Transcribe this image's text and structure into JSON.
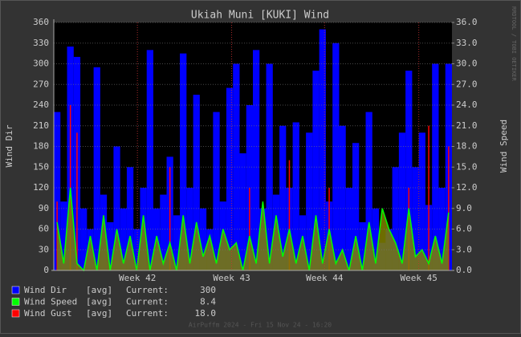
{
  "chart_data": {
    "type": "rrd",
    "title": "Ukiah Muni [KUKI] Wind",
    "y_label": "Wind Dir",
    "y2_label": "Wind Speed",
    "side_note": "RRDTOOL / TOBI OETIKER",
    "footer": "AirPuffm 2024 - Fri 15 Nov 24 - 16:20",
    "legend_stat": "[avg]",
    "current_label": "Current:",
    "x": [
      0,
      0.5,
      1,
      1.5,
      2,
      2.5,
      3,
      3.5,
      4,
      4.5,
      5,
      5.5,
      6,
      6.5,
      7,
      7.5,
      8,
      8.5,
      9,
      9.5,
      10,
      10.5,
      11,
      11.5,
      12,
      12.5,
      13,
      13.5,
      14,
      14.5,
      15,
      15.5,
      16,
      16.5,
      17,
      17.5,
      18,
      18.5,
      19,
      19.5,
      20,
      20.5,
      21,
      21.5,
      22,
      22.5,
      23,
      23.5,
      24,
      24.5,
      25,
      25.5,
      26,
      26.5,
      27,
      27.5,
      28,
      28.5,
      29,
      29.5
    ],
    "xlim": [
      0,
      30
    ],
    "xticks": [
      {
        "value": 6.3,
        "label": "Week 42"
      },
      {
        "value": 13.4,
        "label": "Week 43"
      },
      {
        "value": 20.4,
        "label": "Week 44"
      },
      {
        "value": 27.5,
        "label": "Week 45"
      }
    ],
    "ylim": [
      0,
      360
    ],
    "yticks": [
      0,
      30,
      60,
      90,
      120,
      150,
      180,
      210,
      240,
      270,
      300,
      330,
      360
    ],
    "y2lim": [
      0,
      36
    ],
    "y2ticks": [
      {
        "value": 0,
        "label": "0.0"
      },
      {
        "value": 3,
        "label": "3.0"
      },
      {
        "value": 6,
        "label": "6.0"
      },
      {
        "value": 9,
        "label": "9.0"
      },
      {
        "value": 12,
        "label": "12.0"
      },
      {
        "value": 15,
        "label": "15.0"
      },
      {
        "value": 18,
        "label": "18.0"
      },
      {
        "value": 21,
        "label": "21.0"
      },
      {
        "value": 24,
        "label": "24.0"
      },
      {
        "value": 27,
        "label": "27.0"
      },
      {
        "value": 30,
        "label": "30.0"
      },
      {
        "value": 33,
        "label": "33.0"
      },
      {
        "value": 36,
        "label": "36.0"
      }
    ],
    "grid": true,
    "series": [
      {
        "name": "Wind Dir",
        "color": "#0000ff",
        "current": 300,
        "values": [
          230,
          100,
          325,
          310,
          90,
          60,
          295,
          110,
          70,
          180,
          90,
          150,
          60,
          120,
          320,
          90,
          110,
          165,
          80,
          315,
          120,
          255,
          90,
          60,
          230,
          100,
          265,
          300,
          170,
          240,
          320,
          90,
          300,
          110,
          210,
          120,
          215,
          80,
          200,
          290,
          350,
          100,
          330,
          210,
          120,
          185,
          70,
          230,
          90,
          40,
          60,
          150,
          200,
          290,
          150,
          200,
          95,
          300,
          120,
          300
        ]
      },
      {
        "name": "Wind Speed",
        "color": "#00ff00",
        "axis": "y2",
        "current": 8.4,
        "values": [
          7,
          1,
          12,
          1,
          0,
          5,
          0,
          8,
          0,
          6,
          1,
          5,
          0,
          8,
          0,
          5,
          1,
          4,
          0,
          8,
          1,
          7,
          2,
          5,
          1,
          6,
          3,
          4,
          0,
          5,
          1,
          10,
          1,
          8,
          2,
          6,
          1,
          5,
          0,
          8,
          1,
          6,
          1,
          3,
          0,
          5,
          0,
          7,
          1,
          9,
          6,
          4,
          1,
          9,
          2,
          3,
          1,
          5,
          1,
          8.4
        ]
      },
      {
        "name": "Wind Gust",
        "color": "#ff0000",
        "axis": "y2",
        "current": {
          "value": 18,
          "label": "18.0"
        },
        "values": [
          10,
          null,
          24,
          20,
          null,
          null,
          null,
          null,
          null,
          null,
          null,
          null,
          null,
          null,
          null,
          null,
          null,
          15,
          null,
          null,
          null,
          null,
          null,
          null,
          null,
          null,
          null,
          null,
          null,
          12,
          null,
          null,
          null,
          null,
          null,
          16,
          null,
          null,
          null,
          null,
          null,
          12,
          null,
          null,
          null,
          null,
          null,
          null,
          null,
          null,
          null,
          null,
          null,
          12,
          null,
          null,
          21,
          null,
          null,
          18
        ]
      }
    ]
  }
}
